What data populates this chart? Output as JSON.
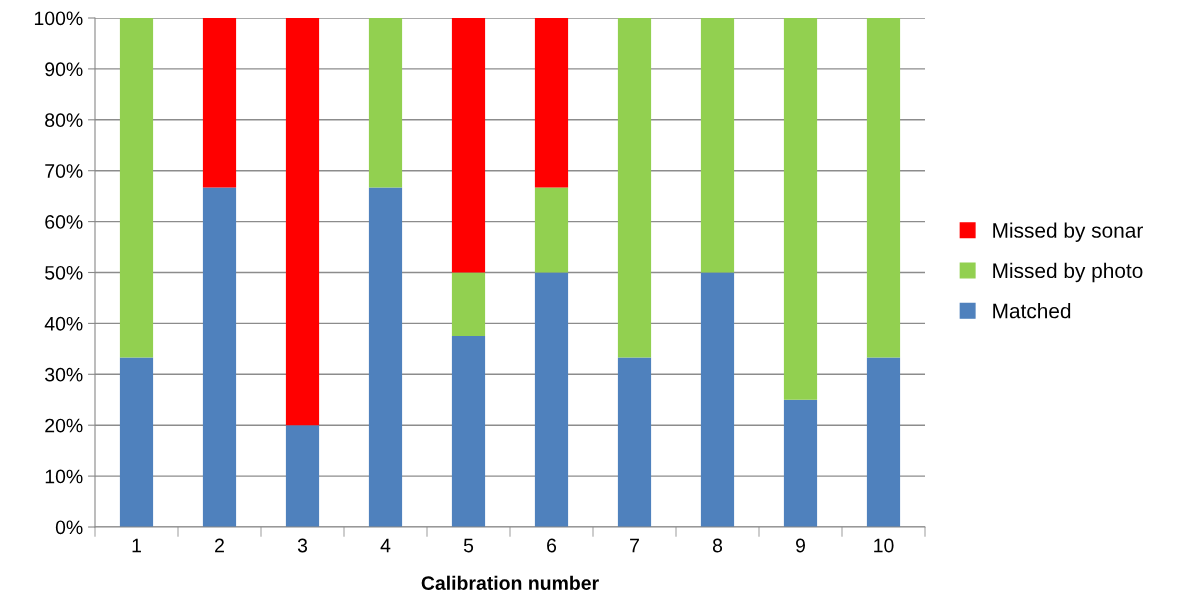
{
  "chart_data": {
    "type": "bar",
    "stacked": true,
    "xlabel": "Calibration number",
    "categories": [
      "1",
      "2",
      "3",
      "4",
      "5",
      "6",
      "7",
      "8",
      "9",
      "10"
    ],
    "series": [
      {
        "name": "Matched",
        "color": "#4f81bd",
        "values": [
          33.3,
          66.7,
          20,
          66.7,
          37.5,
          50,
          33.3,
          50,
          25,
          33.3
        ]
      },
      {
        "name": "Missed by photo",
        "color": "#92d050",
        "values": [
          66.7,
          0,
          0,
          33.3,
          12.5,
          16.7,
          66.7,
          50,
          75,
          66.7
        ]
      },
      {
        "name": "Missed by sonar",
        "color": "#ff0000",
        "values": [
          0,
          33.3,
          80,
          0,
          50,
          33.3,
          0,
          0,
          0,
          0
        ]
      }
    ],
    "ylim": [
      0,
      100
    ],
    "yticks": [
      {
        "value": 0,
        "label": "0%"
      },
      {
        "value": 10,
        "label": "10%"
      },
      {
        "value": 20,
        "label": "20%"
      },
      {
        "value": 30,
        "label": "30%"
      },
      {
        "value": 40,
        "label": "40%"
      },
      {
        "value": 50,
        "label": "50%"
      },
      {
        "value": 60,
        "label": "60%"
      },
      {
        "value": 70,
        "label": "70%"
      },
      {
        "value": 80,
        "label": "80%"
      },
      {
        "value": 90,
        "label": "90%"
      },
      {
        "value": 100,
        "label": "100%"
      }
    ],
    "grid": "y",
    "legend": "right"
  }
}
